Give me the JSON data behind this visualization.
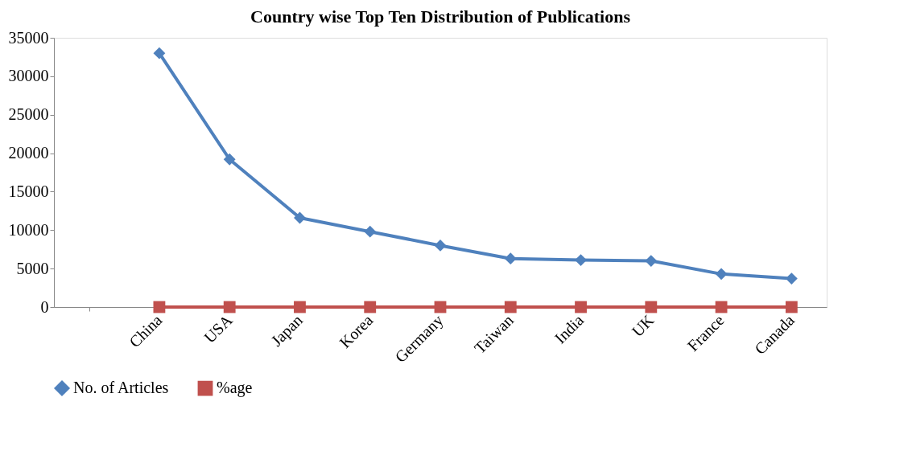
{
  "chart_data": {
    "type": "line",
    "title": "Country wise Top Ten Distribution of Publications",
    "categories": [
      null,
      "China",
      "USA",
      "Japan",
      "Korea",
      "Germany",
      "Taiwan",
      "India",
      "UK",
      "France",
      "Canada"
    ],
    "series": [
      {
        "name": "No. of Articles",
        "color": "#4f81bd",
        "marker": "diamond",
        "values": [
          null,
          33000,
          19200,
          11600,
          9800,
          8000,
          6300,
          6100,
          6000,
          4300,
          3700
        ]
      },
      {
        "name": "%age",
        "color": "#c0504d",
        "marker": "square",
        "values": [
          null,
          0,
          0,
          0,
          0,
          0,
          0,
          0,
          0,
          0,
          0
        ]
      }
    ],
    "ylim": [
      0,
      35000
    ],
    "yticks": [
      0,
      5000,
      10000,
      15000,
      20000,
      25000,
      30000,
      35000
    ],
    "grid": false,
    "legend": "bottom",
    "line_style": "solid"
  }
}
